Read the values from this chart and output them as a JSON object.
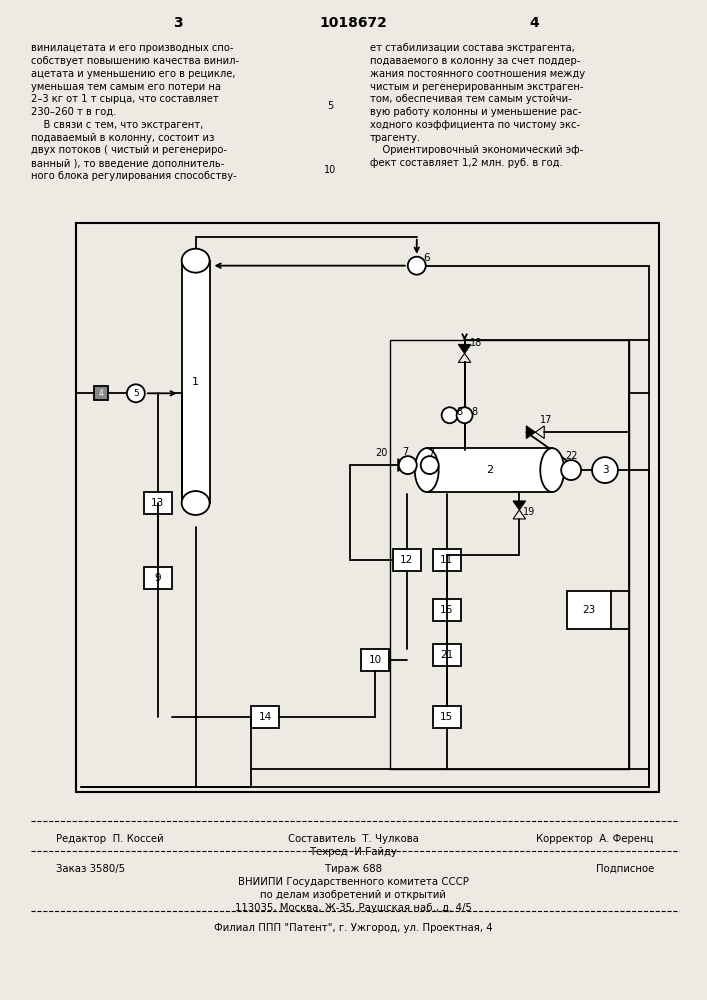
{
  "page_bg": "#ede9e3",
  "title_line": "1018672",
  "page_numbers": [
    "3",
    "4"
  ],
  "text_left": [
    "винилацетата и его производных спо-",
    "собствует повышению качества винил-",
    "ацетата и уменьшению его в рецикле,",
    "уменьшая тем самым его потери на",
    "2–3 кг от 1 т сырца, что составляет",
    "230–260 т в год.",
    "    В связи с тем, что экстрагент,",
    "подаваемый в колонну, состоит из",
    "двух потоков ( чистый и регенериро-",
    "ванный ), то введение дополнитель-",
    "ного блока регулирования способству-"
  ],
  "text_right": [
    "ет стабилизации состава экстрагента,",
    "подаваемого в колонну за счет поддер-",
    "жания постоянного соотношения между",
    "чистым и регенерированным экстраген-",
    "том, обеспечивая тем самым устойчи-",
    "вую работу колонны и уменьшение рас-",
    "ходного коэффициента по чистому экс-",
    "трагенту.",
    "    Ориентировочный экономический эф-",
    "фект составляет 1,2 млн. руб. в год."
  ],
  "footer_editor": "Редактор  П. Коссей",
  "footer_composer": "Составитель  Т. Чулкова",
  "footer_techred": "Техред  И.Гайду",
  "footer_corrector": "Корректор  А. Ференц",
  "footer_order": "Заказ 3580/5",
  "footer_tirazh": "Тираж 688",
  "footer_podpisnoe": "Подписное",
  "footer_vniip1": "ВНИИПИ Государственного комитета СССР",
  "footer_vniip2": "по делам изобретений и открытий",
  "footer_vniip3": "113035, Москва, Ж-35, Раушская наб., д. 4/5",
  "footer_filial": "Филиал ППП \"Патент\", г. Ужгород, ул. Проектная, 4"
}
